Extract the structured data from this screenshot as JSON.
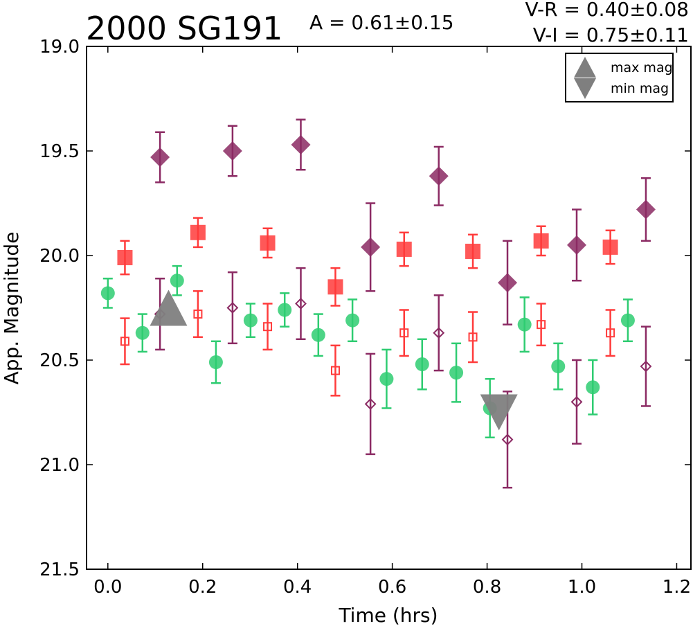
{
  "chart_data": {
    "type": "scatter",
    "title": "2000 SG191",
    "amplitude_text": "A  = 0.61±0.15",
    "color_text": [
      "V-R = 0.40±0.08",
      "V-I  = 0.75±0.11"
    ],
    "xlabel": "Time (hrs)",
    "ylabel": "App. Magnitude",
    "xlim": [
      -0.045,
      1.23
    ],
    "ylim": [
      21.5,
      19.0
    ],
    "y_inverted": true,
    "xticks": [
      0.0,
      0.2,
      0.4,
      0.6,
      0.8,
      1.0,
      1.2
    ],
    "xtick_labels": [
      "0.0",
      "0.2",
      "0.4",
      "0.6",
      "0.8",
      "1.0",
      "1.2"
    ],
    "yticks": [
      19.0,
      19.5,
      20.0,
      20.5,
      21.0,
      21.5
    ],
    "ytick_labels": [
      "19.0",
      "19.5",
      "20.0",
      "20.5",
      "21.0",
      "21.5"
    ],
    "grid": false,
    "legend": {
      "placement": "top-right",
      "entries": [
        {
          "label": "max mag",
          "marker": "triangle-up",
          "color": "#7f7f7f"
        },
        {
          "label": "min mag",
          "marker": "triangle-down",
          "color": "#7f7f7f"
        }
      ]
    },
    "series": [
      {
        "marker": "circle",
        "filled": true,
        "color": "#2ecc71",
        "points": [
          {
            "x": 0.0,
            "y": 20.18,
            "err": 0.07
          },
          {
            "x": 0.073,
            "y": 20.37,
            "err": 0.09
          },
          {
            "x": 0.146,
            "y": 20.12,
            "err": 0.07
          },
          {
            "x": 0.228,
            "y": 20.51,
            "err": 0.1
          },
          {
            "x": 0.301,
            "y": 20.31,
            "err": 0.08
          },
          {
            "x": 0.373,
            "y": 20.26,
            "err": 0.08
          },
          {
            "x": 0.444,
            "y": 20.38,
            "err": 0.1
          },
          {
            "x": 0.516,
            "y": 20.31,
            "err": 0.1
          },
          {
            "x": 0.588,
            "y": 20.59,
            "err": 0.14
          },
          {
            "x": 0.663,
            "y": 20.52,
            "err": 0.12
          },
          {
            "x": 0.735,
            "y": 20.56,
            "err": 0.14
          },
          {
            "x": 0.806,
            "y": 20.73,
            "err": 0.14
          },
          {
            "x": 0.879,
            "y": 20.33,
            "err": 0.13
          },
          {
            "x": 0.95,
            "y": 20.53,
            "err": 0.11
          },
          {
            "x": 1.023,
            "y": 20.63,
            "err": 0.13
          },
          {
            "x": 1.097,
            "y": 20.31,
            "err": 0.1
          }
        ]
      },
      {
        "marker": "square",
        "filled": true,
        "color": "#ff3b3b",
        "points": [
          {
            "x": 0.036,
            "y": 20.01,
            "err": 0.08
          },
          {
            "x": 0.19,
            "y": 19.89,
            "err": 0.07
          },
          {
            "x": 0.337,
            "y": 19.94,
            "err": 0.07
          },
          {
            "x": 0.48,
            "y": 20.15,
            "err": 0.09
          },
          {
            "x": 0.625,
            "y": 19.97,
            "err": 0.08
          },
          {
            "x": 0.77,
            "y": 19.98,
            "err": 0.08
          },
          {
            "x": 0.914,
            "y": 19.93,
            "err": 0.07
          },
          {
            "x": 1.06,
            "y": 19.96,
            "err": 0.08
          }
        ]
      },
      {
        "marker": "square",
        "filled": false,
        "color": "#ff3b3b",
        "points": [
          {
            "x": 0.036,
            "y": 20.41,
            "err": 0.11
          },
          {
            "x": 0.19,
            "y": 20.28,
            "err": 0.11
          },
          {
            "x": 0.337,
            "y": 20.34,
            "err": 0.11
          },
          {
            "x": 0.48,
            "y": 20.55,
            "err": 0.12
          },
          {
            "x": 0.625,
            "y": 20.37,
            "err": 0.11
          },
          {
            "x": 0.77,
            "y": 20.39,
            "err": 0.12
          },
          {
            "x": 0.914,
            "y": 20.33,
            "err": 0.1
          },
          {
            "x": 1.06,
            "y": 20.37,
            "err": 0.11
          }
        ]
      },
      {
        "marker": "diamond",
        "filled": true,
        "color": "#8b2a63",
        "points": [
          {
            "x": 0.11,
            "y": 19.53,
            "err": 0.12
          },
          {
            "x": 0.263,
            "y": 19.5,
            "err": 0.12
          },
          {
            "x": 0.407,
            "y": 19.47,
            "err": 0.12
          },
          {
            "x": 0.554,
            "y": 19.96,
            "err": 0.21
          },
          {
            "x": 0.698,
            "y": 19.62,
            "err": 0.14
          },
          {
            "x": 0.843,
            "y": 20.13,
            "err": 0.2
          },
          {
            "x": 0.989,
            "y": 19.95,
            "err": 0.17
          },
          {
            "x": 1.135,
            "y": 19.78,
            "err": 0.15
          }
        ]
      },
      {
        "marker": "diamond",
        "filled": false,
        "color": "#8b2a63",
        "points": [
          {
            "x": 0.11,
            "y": 20.28,
            "err": 0.17
          },
          {
            "x": 0.263,
            "y": 20.25,
            "err": 0.17
          },
          {
            "x": 0.407,
            "y": 20.23,
            "err": 0.17
          },
          {
            "x": 0.554,
            "y": 20.71,
            "err": 0.24
          },
          {
            "x": 0.698,
            "y": 20.37,
            "err": 0.18
          },
          {
            "x": 0.843,
            "y": 20.88,
            "err": 0.23
          },
          {
            "x": 0.989,
            "y": 20.7,
            "err": 0.2
          },
          {
            "x": 1.135,
            "y": 20.53,
            "err": 0.19
          }
        ]
      }
    ],
    "extrema": [
      {
        "label": "max mag",
        "marker": "triangle-up",
        "x": 0.128,
        "y": 20.25,
        "color": "#7f7f7f"
      },
      {
        "label": "min mag",
        "marker": "triangle-down",
        "x": 0.825,
        "y": 20.75,
        "color": "#7f7f7f"
      }
    ]
  }
}
